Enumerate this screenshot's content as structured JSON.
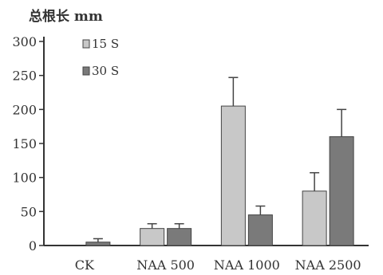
{
  "chart_data": {
    "type": "bar",
    "ylabel": "总根长 mm",
    "categories": [
      "CK",
      "NAA 500",
      "NAA 1000",
      "NAA 2500"
    ],
    "ylim": [
      0,
      300
    ],
    "yticks": [
      0,
      50,
      100,
      150,
      200,
      250,
      300
    ],
    "series": [
      {
        "name": "15 S",
        "color": "#c8c8c8",
        "values": [
          null,
          25,
          205,
          80
        ],
        "errors": [
          null,
          7,
          42,
          27
        ]
      },
      {
        "name": "30 S",
        "color": "#7a7a7a",
        "values": [
          5,
          25,
          45,
          160
        ],
        "errors": [
          5,
          7,
          13,
          40
        ]
      }
    ],
    "legend_position": "top-left",
    "grid": false
  }
}
